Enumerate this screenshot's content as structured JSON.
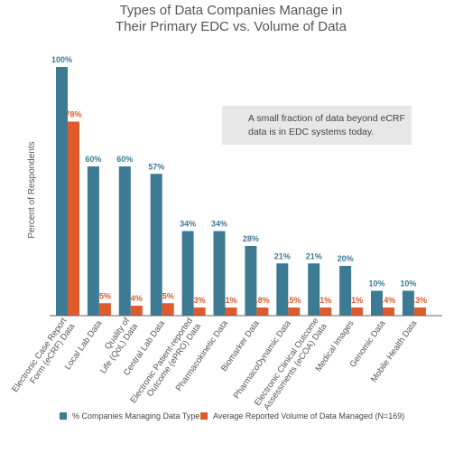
{
  "chart_data": {
    "type": "bar",
    "title_line1": "Types of Data Companies Manage in",
    "title_line2": "Their Primary EDC vs. Volume of Data",
    "ylabel": "Percent of Respondents",
    "ylim": [
      0,
      100
    ],
    "grid": false,
    "categories": [
      "Electronic Case Report Form (eCRF) Data",
      "Local Lab Data",
      "Quality of Life (QoL) Data",
      "Central Lab Data",
      "Electronic Patient-reported Outcome (ePRO) Data",
      "Pharmacokinetic Data",
      "Biomarker Data",
      "PharmacoDynamic Data",
      "Electronic Clinical Outcome Assessments (eCOA) Data",
      "Medical Images",
      "Genomic Data",
      "Mobile Health Data"
    ],
    "series": [
      {
        "name": "% Companies Managing Data Type",
        "color": "#3d7a93",
        "values": [
          100,
          60,
          60,
          57,
          34,
          34,
          28,
          21,
          21,
          20,
          10,
          10
        ],
        "labels": [
          "100%",
          "60%",
          "60%",
          "57%",
          "34%",
          "34%",
          "28%",
          "21%",
          "21%",
          "20%",
          "10%",
          "10%"
        ]
      },
      {
        "name": "Average Reported Volume of Data Managed (N=169)",
        "color": "#e05a2b",
        "values": [
          78,
          5,
          4,
          5,
          3,
          1,
          0.8,
          0.5,
          1,
          1,
          0.4,
          0.3
        ],
        "labels": [
          "78%",
          "5%",
          "4%",
          "5%",
          "3%",
          "1%",
          ".8%",
          ".5%",
          "1%",
          "1%",
          ".4%",
          ".3%"
        ]
      }
    ],
    "annotation": "A small fraction of data beyond eCRF data is in EDC systems today.",
    "annotation_lines": [
      "A small fraction of data beyond eCRF",
      "data is in EDC systems today."
    ],
    "legend_position": "bottom"
  }
}
